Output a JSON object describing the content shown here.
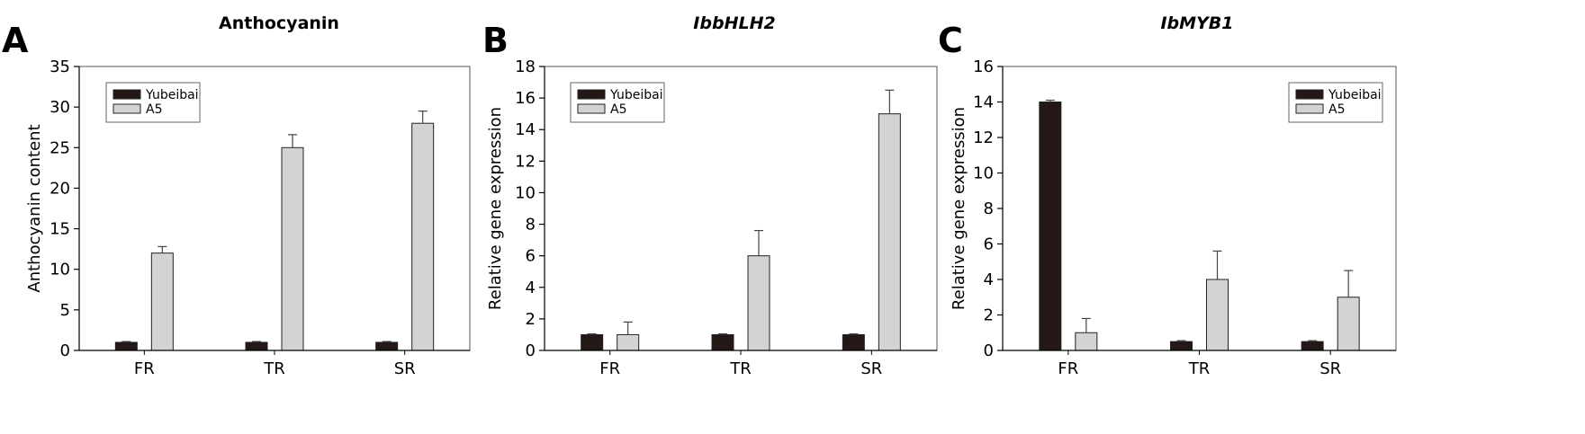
{
  "figure": {
    "panels": [
      {
        "letter": "A",
        "title": "Anthocyanin",
        "title_italic": false
      },
      {
        "letter": "B",
        "title": "IbbHLH2",
        "title_italic": true
      },
      {
        "letter": "C",
        "title": "IbMYB1",
        "title_italic": true
      }
    ]
  },
  "colors": {
    "Yubeibai": "#231815",
    "A5": "#d3d3d3",
    "axis": "#000000",
    "error_bar": "#444444"
  },
  "chart_data": [
    {
      "type": "bar",
      "title": "Anthocyanin",
      "xlabel": "",
      "ylabel": "Anthocyanin content",
      "categories": [
        "FR",
        "TR",
        "SR"
      ],
      "ylim": [
        0,
        35
      ],
      "yticks": [
        0,
        5,
        10,
        15,
        20,
        25,
        30,
        35
      ],
      "legend_position": "top-left",
      "grid": false,
      "series": [
        {
          "name": "Yubeibai",
          "values": [
            1,
            1,
            1
          ],
          "errors": [
            0.1,
            0.1,
            0.1
          ]
        },
        {
          "name": "A5",
          "values": [
            12,
            25,
            28
          ],
          "errors": [
            0.8,
            1.6,
            1.5
          ]
        }
      ]
    },
    {
      "type": "bar",
      "title": "IbbHLH2",
      "xlabel": "",
      "ylabel": "Relative gene expression",
      "categories": [
        "FR",
        "TR",
        "SR"
      ],
      "ylim": [
        0,
        18
      ],
      "yticks": [
        0,
        2,
        4,
        6,
        8,
        10,
        12,
        14,
        16,
        18
      ],
      "legend_position": "top-left",
      "grid": false,
      "series": [
        {
          "name": "Yubeibai",
          "values": [
            1,
            1,
            1
          ],
          "errors": [
            0.05,
            0.05,
            0.05
          ]
        },
        {
          "name": "A5",
          "values": [
            1,
            6,
            15
          ],
          "errors": [
            0.8,
            1.6,
            1.5
          ]
        }
      ]
    },
    {
      "type": "bar",
      "title": "IbMYB1",
      "xlabel": "",
      "ylabel": "Relative gene expression",
      "categories": [
        "FR",
        "TR",
        "SR"
      ],
      "ylim": [
        0,
        16
      ],
      "yticks": [
        0,
        2,
        4,
        6,
        8,
        10,
        12,
        14,
        16
      ],
      "legend_position": "top-right",
      "grid": false,
      "series": [
        {
          "name": "Yubeibai",
          "values": [
            14,
            0.5,
            0.5
          ],
          "errors": [
            0.1,
            0.05,
            0.05
          ]
        },
        {
          "name": "A5",
          "values": [
            1,
            4,
            3
          ],
          "errors": [
            0.8,
            1.6,
            1.5
          ]
        }
      ]
    }
  ]
}
